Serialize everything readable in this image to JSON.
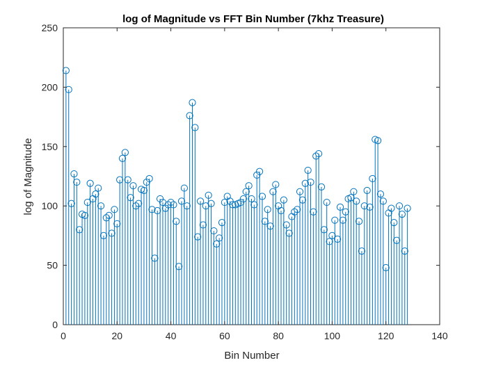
{
  "chart_data": {
    "type": "stem",
    "title": "log of Magnitude vs FFT Bin Number (7khz Treasure)",
    "xlabel": "Bin Number",
    "ylabel": "log of Magnitude",
    "xlim": [
      0,
      140
    ],
    "ylim": [
      0,
      250
    ],
    "xticks": [
      "0",
      "20",
      "40",
      "60",
      "80",
      "100",
      "120",
      "140"
    ],
    "yticks": [
      "0",
      "50",
      "100",
      "150",
      "200",
      "250"
    ],
    "grid": false,
    "color": "#0072BD",
    "x": [
      1,
      2,
      3,
      4,
      5,
      6,
      7,
      8,
      9,
      10,
      11,
      12,
      13,
      14,
      15,
      16,
      17,
      18,
      19,
      20,
      21,
      22,
      23,
      24,
      25,
      26,
      27,
      28,
      29,
      30,
      31,
      32,
      33,
      34,
      35,
      36,
      37,
      38,
      39,
      40,
      41,
      42,
      43,
      44,
      45,
      46,
      47,
      48,
      49,
      50,
      51,
      52,
      53,
      54,
      55,
      56,
      57,
      58,
      59,
      60,
      61,
      62,
      63,
      64,
      65,
      66,
      67,
      68,
      69,
      70,
      71,
      72,
      73,
      74,
      75,
      76,
      77,
      78,
      79,
      80,
      81,
      82,
      83,
      84,
      85,
      86,
      87,
      88,
      89,
      90,
      91,
      92,
      93,
      94,
      95,
      96,
      97,
      98,
      99,
      100,
      101,
      102,
      103,
      104,
      105,
      106,
      107,
      108,
      109,
      110,
      111,
      112,
      113,
      114,
      115,
      116,
      117,
      118,
      119,
      120,
      121,
      122,
      123,
      124,
      125,
      126,
      127,
      128
    ],
    "values": [
      214,
      198,
      102,
      127,
      120,
      80,
      93,
      92,
      103,
      119,
      106,
      110,
      115,
      100,
      75,
      90,
      92,
      77,
      97,
      85,
      122,
      140,
      145,
      122,
      107,
      117,
      100,
      102,
      114,
      113,
      120,
      123,
      97,
      56,
      96,
      106,
      103,
      98,
      101,
      103,
      101,
      87,
      49,
      104,
      115,
      100,
      176,
      187,
      166,
      74,
      104,
      84,
      100,
      109,
      102,
      79,
      68,
      73,
      86,
      103,
      108,
      104,
      101,
      101,
      102,
      103,
      106,
      112,
      117,
      106,
      101,
      126,
      129,
      108,
      87,
      97,
      83,
      112,
      118,
      100,
      96,
      105,
      84,
      77,
      91,
      95,
      97,
      112,
      105,
      119,
      130,
      120,
      95,
      142,
      144,
      116,
      80,
      103,
      70,
      75,
      88,
      72,
      99,
      88,
      95,
      106,
      107,
      112,
      104,
      87,
      62,
      100,
      113,
      99,
      123,
      156,
      155,
      110,
      104,
      48,
      94,
      98,
      86,
      71,
      100,
      93,
      62,
      98
    ]
  }
}
